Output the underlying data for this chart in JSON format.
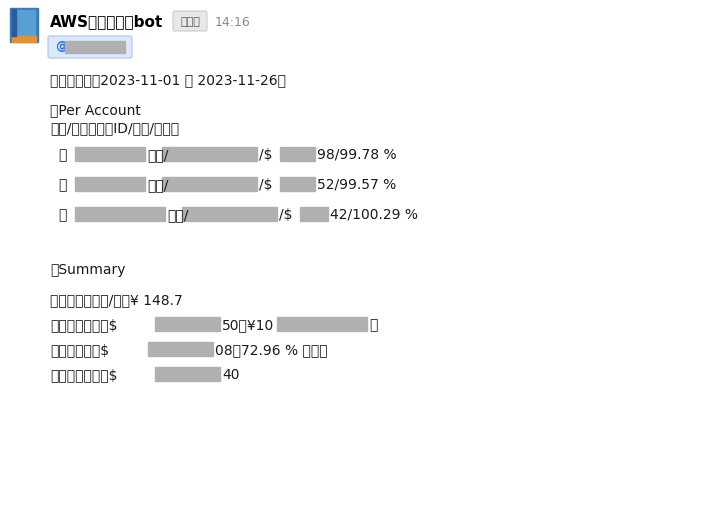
{
  "bg_color": "#ffffff",
  "border_color": "#e0e0e0",
  "bot_name": "AWS利用料通知bot",
  "app_label": "アプリ",
  "time": "14:16",
  "mention_bg": "#e8f0fe",
  "mention_text": "@",
  "mention_text_color": "#1a73e8",
  "period_line": "〇期間：　【2023-11-01 ～ 2023-11-26】",
  "per_account_header": "〇Per Account",
  "per_account_subheader": "環境/アカウントID/実績/前日比",
  "account_rows": [
    {
      "prefix": "・",
      "suffix": " 環境/",
      "amount_suffix": "/$　　98/99.78 %"
    },
    {
      "prefix": "・",
      "suffix": " 環境/",
      "amount_suffix": "/$　　52/99.57 %"
    },
    {
      "prefix": "・",
      "suffix": " 環境/",
      "amount_suffix": "/$　42/100.29 %"
    }
  ],
  "summary_header": "〇Summary",
  "summary_rows": [
    "・本日の米ドル/円：¥ 148.7",
    "・予算　　　：$　　　　50（¥10　　　　　）",
    "・合計実績：$　　　　08（72.96 % 消費）",
    "・予測　　　：$　　　　40"
  ],
  "gray_color": "#b0b0b0",
  "text_color": "#1a1a1a",
  "title_color": "#000000",
  "icon_blue": "#4a90d9",
  "icon_orange": "#e6922a",
  "name_fontsize": 11,
  "body_fontsize": 10,
  "small_fontsize": 9
}
